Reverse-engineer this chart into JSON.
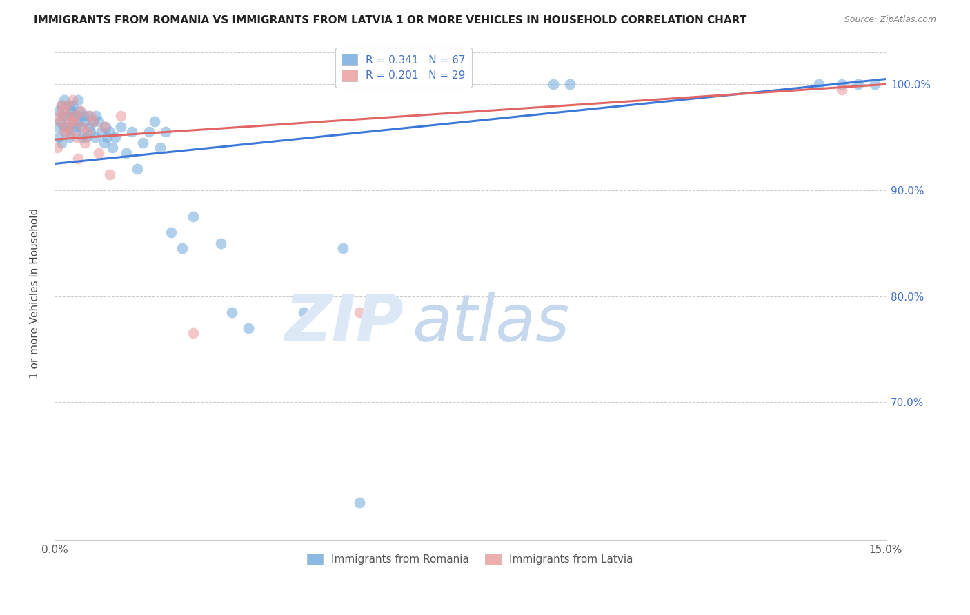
{
  "title": "IMMIGRANTS FROM ROMANIA VS IMMIGRANTS FROM LATVIA 1 OR MORE VEHICLES IN HOUSEHOLD CORRELATION CHART",
  "source": "Source: ZipAtlas.com",
  "ylabel": "1 or more Vehicles in Household",
  "x_range": [
    0.0,
    15.0
  ],
  "y_range": [
    57.0,
    103.5
  ],
  "romania_color": "#6fa8dc",
  "latvia_color": "#ea9999",
  "romania_R": 0.341,
  "romania_N": 67,
  "latvia_R": 0.201,
  "latvia_N": 29,
  "romania_line_color": "#3c78d8",
  "latvia_line_color": "#e06666",
  "romania_line_y0": 92.5,
  "romania_line_y1": 100.5,
  "latvia_line_y0": 94.8,
  "latvia_line_y1": 100.0,
  "ytick_vals": [
    70,
    80,
    90,
    100
  ],
  "ytick_labels": [
    "70.0%",
    "80.0%",
    "90.0%",
    "100.0%"
  ],
  "romania_x": [
    0.05,
    0.07,
    0.08,
    0.1,
    0.12,
    0.13,
    0.15,
    0.17,
    0.18,
    0.2,
    0.22,
    0.25,
    0.27,
    0.28,
    0.3,
    0.32,
    0.33,
    0.35,
    0.37,
    0.38,
    0.4,
    0.42,
    0.43,
    0.45,
    0.47,
    0.5,
    0.52,
    0.55,
    0.57,
    0.6,
    0.63,
    0.65,
    0.7,
    0.73,
    0.75,
    0.8,
    0.85,
    0.9,
    0.92,
    0.95,
    1.0,
    1.05,
    1.1,
    1.2,
    1.3,
    1.4,
    1.5,
    1.6,
    1.7,
    1.8,
    1.9,
    2.0,
    2.1,
    2.3,
    2.5,
    3.0,
    3.2,
    3.5,
    4.5,
    5.2,
    9.0,
    9.3,
    13.8,
    14.2,
    14.5,
    14.8,
    5.5
  ],
  "romania_y": [
    96.0,
    97.5,
    95.0,
    96.5,
    98.0,
    94.5,
    97.0,
    96.0,
    98.5,
    95.5,
    97.0,
    96.0,
    98.0,
    95.0,
    97.5,
    96.5,
    98.0,
    97.0,
    96.0,
    95.5,
    97.0,
    96.5,
    98.5,
    97.5,
    96.0,
    95.0,
    97.0,
    96.5,
    95.0,
    97.0,
    96.0,
    95.5,
    96.5,
    95.0,
    97.0,
    96.5,
    95.5,
    94.5,
    96.0,
    95.0,
    95.5,
    94.0,
    95.0,
    96.0,
    93.5,
    95.5,
    92.0,
    94.5,
    95.5,
    96.5,
    94.0,
    95.5,
    86.0,
    84.5,
    87.5,
    85.0,
    78.5,
    77.0,
    78.5,
    84.5,
    100.0,
    100.0,
    100.0,
    100.0,
    100.0,
    100.0,
    60.5
  ],
  "latvia_x": [
    0.05,
    0.08,
    0.1,
    0.13,
    0.15,
    0.17,
    0.2,
    0.22,
    0.25,
    0.28,
    0.3,
    0.33,
    0.35,
    0.38,
    0.4,
    0.43,
    0.47,
    0.5,
    0.55,
    0.6,
    0.65,
    0.7,
    0.8,
    0.9,
    1.0,
    1.2,
    2.5,
    5.5,
    14.2
  ],
  "latvia_y": [
    94.0,
    97.0,
    96.5,
    98.0,
    97.5,
    95.5,
    96.0,
    98.0,
    97.0,
    95.5,
    96.5,
    98.5,
    96.5,
    97.0,
    95.0,
    93.0,
    97.5,
    96.0,
    94.5,
    95.5,
    97.0,
    96.5,
    93.5,
    96.0,
    91.5,
    97.0,
    76.5,
    78.5,
    99.5
  ],
  "background_color": "#ffffff"
}
